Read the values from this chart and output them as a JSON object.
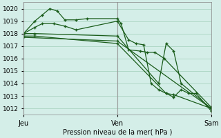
{
  "bg_color": "#d4eee8",
  "grid_color": "#b0d8c8",
  "line_color": "#1a5c1a",
  "title": "Pression niveau de la mer( hPa )",
  "ylim": [
    1011.5,
    1020.5
  ],
  "yticks": [
    1012,
    1013,
    1014,
    1015,
    1016,
    1017,
    1018,
    1019,
    1020
  ],
  "xtick_pos": [
    0,
    0.5,
    1.0
  ],
  "xtick_labels": [
    "Jeu",
    "Ven",
    "Sam"
  ],
  "vline_pos": [
    0.0,
    0.5,
    1.0
  ],
  "series": [
    {
      "x": [
        0.0,
        0.06,
        0.1,
        0.14,
        0.18,
        0.22,
        0.28,
        0.34,
        0.5,
        0.52,
        0.56,
        0.62,
        0.66,
        0.7,
        0.75,
        1.0
      ],
      "y": [
        1018.0,
        1019.0,
        1019.5,
        1020.0,
        1019.8,
        1019.1,
        1019.1,
        1019.2,
        1019.2,
        1018.8,
        1016.7,
        1016.6,
        1016.5,
        1016.5,
        1016.0,
        1012.1
      ]
    },
    {
      "x": [
        0.0,
        0.06,
        0.1,
        0.16,
        0.22,
        0.28,
        0.5,
        0.56,
        0.6,
        0.64,
        0.68,
        0.72,
        0.76,
        0.8,
        1.0
      ],
      "y": [
        1018.0,
        1018.5,
        1018.8,
        1018.8,
        1018.6,
        1018.3,
        1019.0,
        1017.5,
        1017.2,
        1017.1,
        1014.0,
        1013.5,
        1013.2,
        1013.1,
        1012.0
      ]
    },
    {
      "x": [
        0.0,
        0.06,
        0.5,
        0.72,
        0.76,
        0.8,
        0.84,
        1.0
      ],
      "y": [
        1018.0,
        1018.0,
        1017.8,
        1014.0,
        1017.2,
        1016.6,
        1014.0,
        1012.0
      ]
    },
    {
      "x": [
        0.0,
        0.06,
        0.5,
        0.76,
        0.8,
        0.84,
        0.88,
        0.92,
        1.0
      ],
      "y": [
        1017.8,
        1017.8,
        1017.2,
        1013.2,
        1012.9,
        1013.5,
        1013.2,
        1013.2,
        1011.8
      ]
    },
    {
      "x": [
        0.0,
        0.5,
        1.0
      ],
      "y": [
        1017.7,
        1017.4,
        1012.0
      ]
    }
  ]
}
